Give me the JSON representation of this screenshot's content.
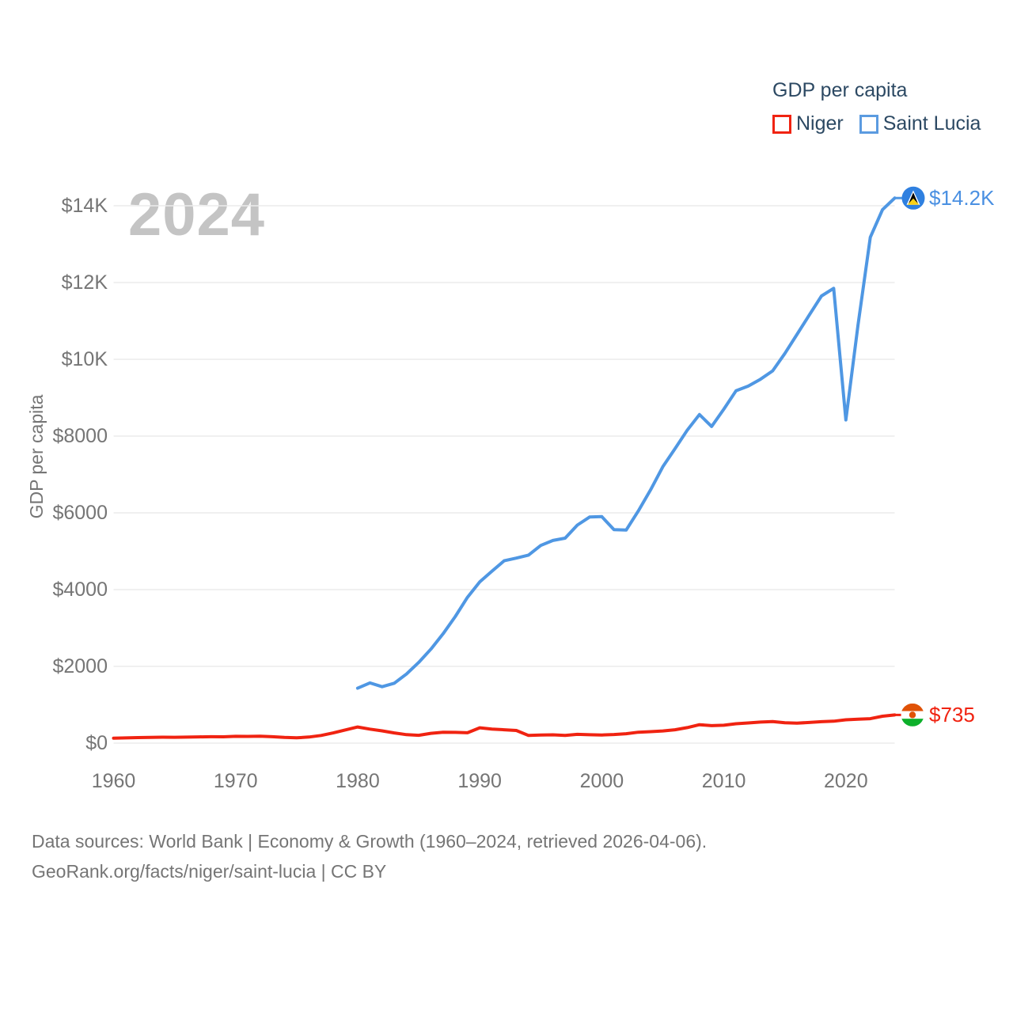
{
  "watermark": "2024",
  "legend": {
    "title": "GDP per capita",
    "items": [
      {
        "label": "Niger",
        "color": "#f02311"
      },
      {
        "label": "Saint Lucia",
        "color": "#5b9be0"
      }
    ]
  },
  "y_axis": {
    "title": "GDP per capita",
    "ticks": [
      {
        "label": "$0",
        "value": 0
      },
      {
        "label": "$2000",
        "value": 2000
      },
      {
        "label": "$4000",
        "value": 4000
      },
      {
        "label": "$6000",
        "value": 6000
      },
      {
        "label": "$8000",
        "value": 8000
      },
      {
        "label": "$10K",
        "value": 10000
      },
      {
        "label": "$12K",
        "value": 12000
      },
      {
        "label": "$14K",
        "value": 14000
      }
    ]
  },
  "x_axis": {
    "ticks": [
      1960,
      1970,
      1980,
      1990,
      2000,
      2010,
      2020
    ]
  },
  "end_labels": {
    "saint_lucia": {
      "text": "$14.2K",
      "color": "#4a90e2"
    },
    "niger": {
      "text": "$735",
      "color": "#f02311"
    }
  },
  "footer": {
    "line1": "Data sources: World Bank | Economy & Growth (1960–2024, retrieved 2026-04-06).",
    "line2": "GeoRank.org/facts/niger/saint-lucia | CC BY"
  },
  "chart_data": {
    "type": "line",
    "title": "GDP per capita",
    "xlabel": "",
    "ylabel": "GDP per capita",
    "xlim": [
      1960,
      2024
    ],
    "ylim": [
      0,
      14200
    ],
    "grid": "horizontal",
    "legend_position": "top-right",
    "series": [
      {
        "name": "Niger",
        "color": "#f02311",
        "end_label": "$735",
        "x": [
          1960,
          1961,
          1962,
          1963,
          1964,
          1965,
          1966,
          1967,
          1968,
          1969,
          1970,
          1971,
          1972,
          1973,
          1974,
          1975,
          1976,
          1977,
          1978,
          1979,
          1980,
          1981,
          1982,
          1983,
          1984,
          1985,
          1986,
          1987,
          1988,
          1989,
          1990,
          1991,
          1992,
          1993,
          1994,
          1995,
          1996,
          1997,
          1998,
          1999,
          2000,
          2001,
          2002,
          2003,
          2004,
          2005,
          2006,
          2007,
          2008,
          2009,
          2010,
          2011,
          2012,
          2013,
          2014,
          2015,
          2016,
          2017,
          2018,
          2019,
          2020,
          2021,
          2022,
          2023,
          2024
        ],
        "values": [
          130,
          137,
          144,
          151,
          155,
          152,
          157,
          162,
          168,
          164,
          178,
          175,
          182,
          168,
          148,
          138,
          158,
          200,
          265,
          345,
          420,
          365,
          320,
          265,
          220,
          205,
          255,
          285,
          280,
          270,
          400,
          368,
          348,
          330,
          200,
          212,
          216,
          200,
          228,
          218,
          212,
          225,
          245,
          285,
          298,
          318,
          348,
          405,
          480,
          455,
          465,
          505,
          525,
          548,
          562,
          530,
          522,
          538,
          558,
          572,
          608,
          625,
          638,
          700,
          735
        ]
      },
      {
        "name": "Saint Lucia",
        "color": "#4f97e3",
        "end_label": "$14.2K",
        "x": [
          1980,
          1981,
          1982,
          1983,
          1984,
          1985,
          1986,
          1987,
          1988,
          1989,
          1990,
          1991,
          1992,
          1993,
          1994,
          1995,
          1996,
          1997,
          1998,
          1999,
          2000,
          2001,
          2002,
          2003,
          2004,
          2005,
          2006,
          2007,
          2008,
          2009,
          2010,
          2011,
          2012,
          2013,
          2014,
          2015,
          2016,
          2017,
          2018,
          2019,
          2020,
          2021,
          2022,
          2023,
          2024
        ],
        "values": [
          1430,
          1570,
          1470,
          1560,
          1800,
          2100,
          2450,
          2850,
          3300,
          3800,
          4200,
          4480,
          4750,
          4820,
          4900,
          5150,
          5280,
          5340,
          5680,
          5890,
          5900,
          5560,
          5550,
          6050,
          6600,
          7200,
          7670,
          8150,
          8560,
          8250,
          8700,
          9180,
          9300,
          9480,
          9700,
          10150,
          10650,
          11150,
          11650,
          11850,
          8420,
          10900,
          13180,
          13900,
          14200
        ]
      }
    ]
  }
}
